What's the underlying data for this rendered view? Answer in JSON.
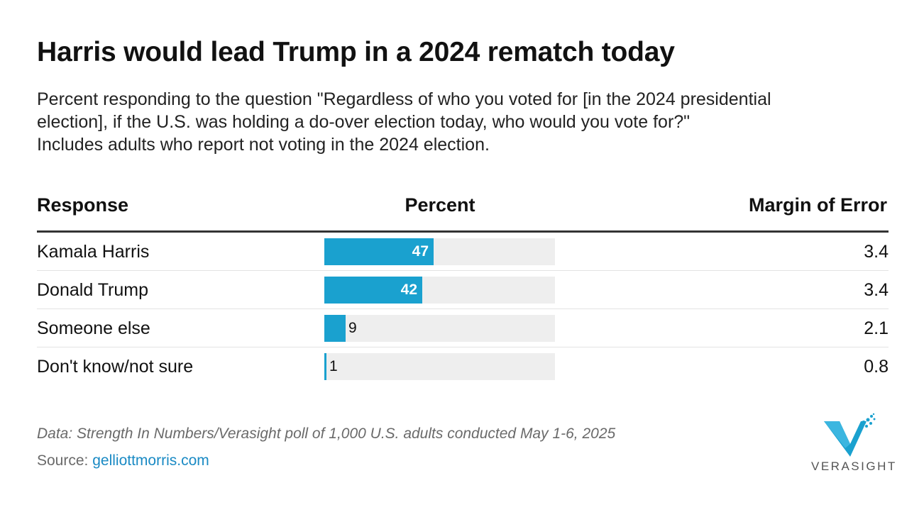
{
  "chart_data": {
    "type": "bar",
    "title": "Harris would lead Trump in a 2024 rematch today",
    "subtitle_lines": [
      "Percent responding to the question \"Regardless of who you voted for [in the 2024 presidential",
      "election], if the U.S. was holding a do-over election today, who would you vote for?\"",
      "Includes adults who report not voting in the 2024 election."
    ],
    "columns": {
      "response": "Response",
      "percent": "Percent",
      "moe": "Margin of Error"
    },
    "xlim": [
      0,
      100
    ],
    "categories": [
      "Kamala Harris",
      "Donald Trump",
      "Someone else",
      "Don't know/not sure"
    ],
    "values": [
      47,
      42,
      9,
      1
    ],
    "margin_of_error": [
      "3.4",
      "3.4",
      "2.1",
      "0.8"
    ],
    "bar_color": "#1aa1cf",
    "track_color": "#eeeeee"
  },
  "footer": {
    "note": "Data: Strength In Numbers/Verasight poll of 1,000 U.S. adults conducted May 1-6, 2025",
    "source_label": "Source: ",
    "source_link": "gelliottmorris.com"
  },
  "logo": {
    "name": "VERASIGHT",
    "icon": "verasight-v-logo"
  }
}
